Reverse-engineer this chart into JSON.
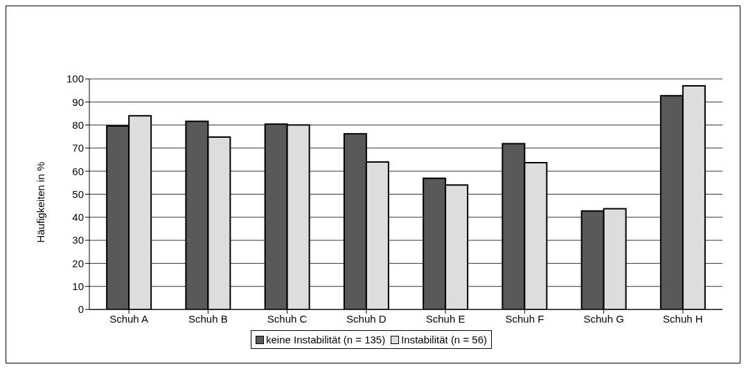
{
  "chart_data": {
    "type": "bar",
    "ylabel": "Häufigkeiten in %",
    "categories": [
      "Schuh A",
      "Schuh B",
      "Schuh C",
      "Schuh D",
      "Schuh E",
      "Schuh F",
      "Schuh G",
      "Schuh H"
    ],
    "series": [
      {
        "name": "keine Instabilität (n = 135)",
        "color": "#595959",
        "values": [
          79.6,
          81.6,
          80.4,
          76.2,
          56.9,
          71.9,
          42.7,
          92.7
        ]
      },
      {
        "name": "Instabilität (n = 56)",
        "color": "#dddddd",
        "values": [
          84.0,
          74.8,
          80.0,
          64.0,
          54.0,
          63.7,
          43.7,
          97.0
        ]
      }
    ],
    "ylim": [
      0,
      100
    ],
    "yticks": [
      0,
      10,
      20,
      30,
      40,
      50,
      60,
      70,
      80,
      90,
      100
    ],
    "grid": "y",
    "legend": "bottom"
  }
}
